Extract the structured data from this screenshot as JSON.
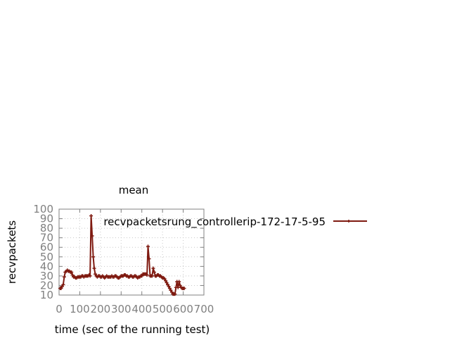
{
  "chart_data": {
    "type": "line",
    "title": "mean",
    "xlabel": "time (sec of the running test)",
    "ylabel": "recvpackets",
    "xlim": [
      0,
      700
    ],
    "ylim": [
      10,
      100
    ],
    "x_ticks": [
      "0",
      "100",
      "200",
      "300",
      "400",
      "500",
      "600",
      "700"
    ],
    "y_ticks": [
      "10",
      "20",
      "30",
      "40",
      "50",
      "60",
      "70",
      "80",
      "90",
      "100"
    ],
    "grid": true,
    "legend_position": "top-right",
    "colors": {
      "series": "#7f1a10",
      "grid": "#c8c8c8",
      "axis": "#808080"
    },
    "series": [
      {
        "name": "recvpacketsrung_controllerip-172-17-5-95",
        "x": [
          5,
          10,
          15,
          20,
          25,
          30,
          35,
          40,
          45,
          50,
          55,
          60,
          65,
          70,
          75,
          80,
          85,
          90,
          95,
          100,
          105,
          110,
          115,
          120,
          125,
          130,
          135,
          140,
          145,
          150,
          155,
          160,
          165,
          170,
          175,
          180,
          185,
          190,
          195,
          200,
          205,
          210,
          215,
          220,
          225,
          230,
          235,
          240,
          245,
          250,
          255,
          260,
          265,
          270,
          275,
          280,
          285,
          290,
          295,
          300,
          305,
          310,
          315,
          320,
          325,
          330,
          335,
          340,
          345,
          350,
          355,
          360,
          365,
          370,
          375,
          380,
          385,
          390,
          395,
          400,
          405,
          410,
          415,
          420,
          425,
          430,
          435,
          440,
          445,
          450,
          455,
          460,
          465,
          470,
          475,
          480,
          485,
          490,
          495,
          500,
          505,
          510,
          515,
          520,
          525,
          530,
          535,
          540,
          545,
          550,
          555,
          560,
          565,
          570,
          575,
          580,
          585,
          590,
          595,
          600,
          605
        ],
        "values": [
          17,
          17,
          19,
          21,
          29,
          34,
          35,
          36,
          35,
          35,
          34,
          34,
          31,
          29,
          29,
          28,
          28,
          29,
          29,
          29,
          29,
          30,
          30,
          29,
          30,
          30,
          30,
          30,
          31,
          30,
          93,
          72,
          50,
          38,
          32,
          30,
          29,
          30,
          30,
          29,
          29,
          30,
          29,
          28,
          29,
          30,
          29,
          29,
          29,
          29,
          30,
          29,
          29,
          30,
          30,
          29,
          28,
          28,
          29,
          30,
          30,
          30,
          31,
          31,
          30,
          30,
          29,
          29,
          30,
          30,
          29,
          29,
          30,
          30,
          29,
          28,
          29,
          29,
          30,
          30,
          32,
          32,
          32,
          32,
          31,
          61,
          48,
          30,
          30,
          30,
          38,
          34,
          30,
          30,
          31,
          31,
          30,
          30,
          29,
          28,
          28,
          27,
          25,
          23,
          21,
          19,
          17,
          15,
          13,
          11,
          11,
          11,
          18,
          24,
          18,
          24,
          20,
          18,
          17,
          17,
          17
        ]
      }
    ]
  }
}
